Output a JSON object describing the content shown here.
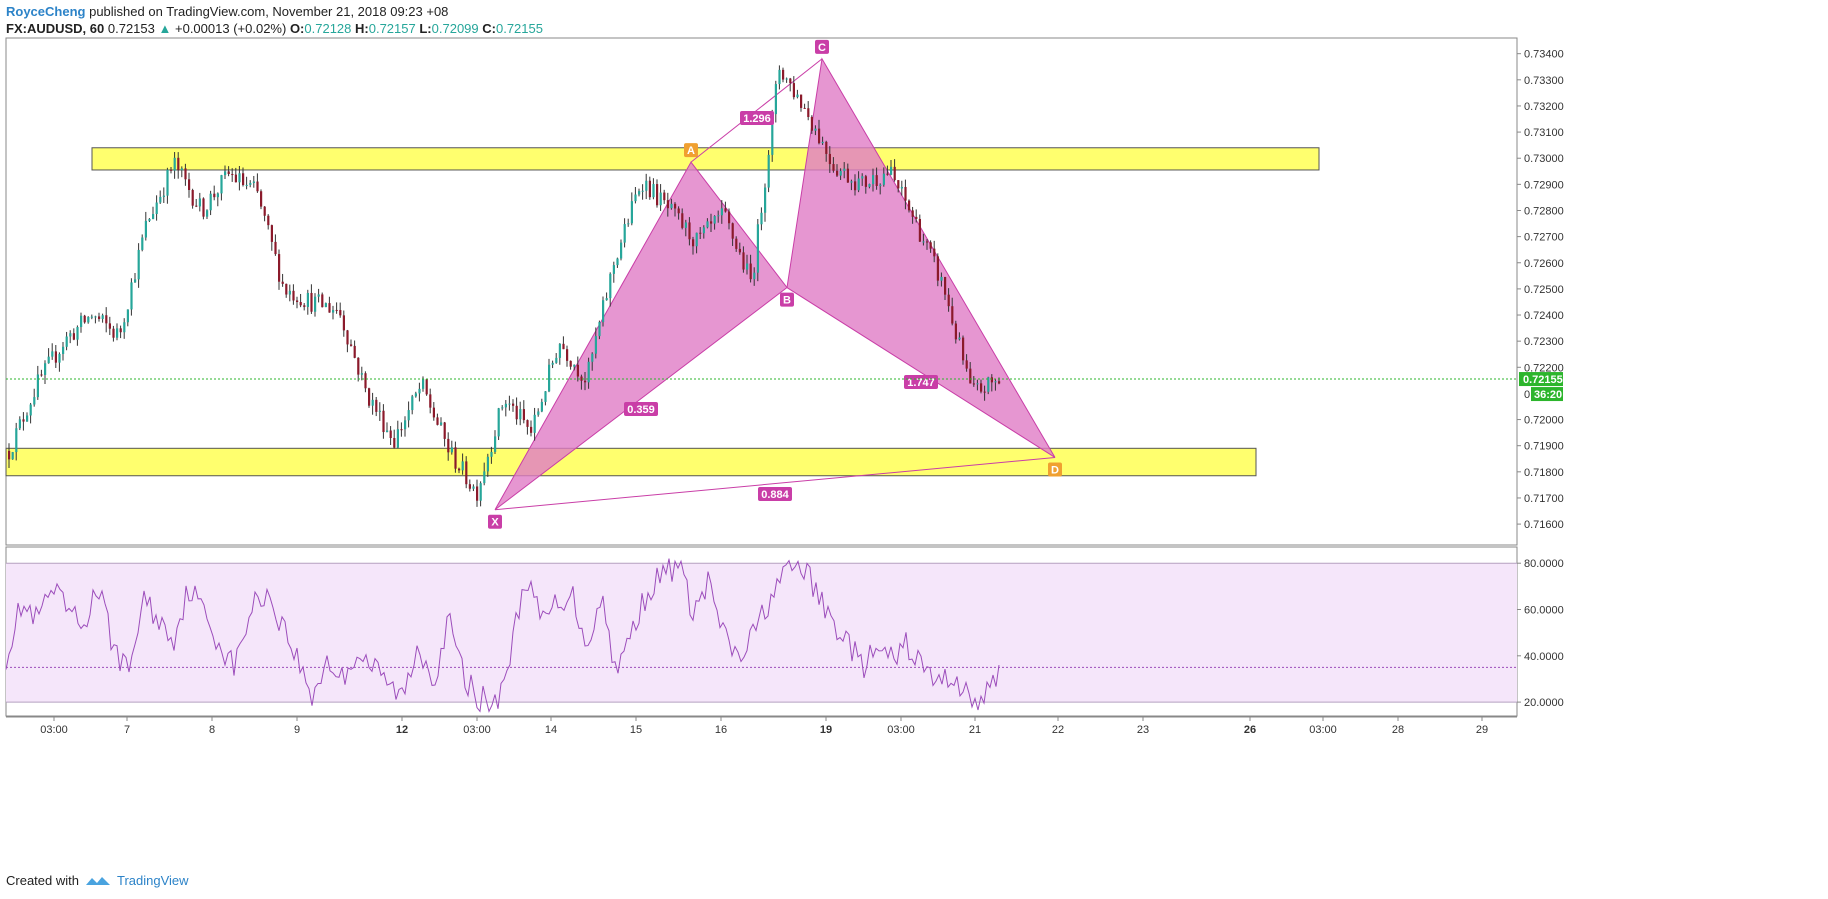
{
  "header": {
    "user": "RoyceCheng",
    "published": "published on TradingView.com, November 21, 2018 09:23 +08",
    "symbol": "FX:AUDUSD, 60",
    "last": "0.72153",
    "change": "+0.00013 (+0.02%)",
    "open_label": "O:",
    "open": "0.72128",
    "high_label": "H:",
    "high": "0.72157",
    "low_label": "L:",
    "low": "0.72099",
    "close_label": "C:",
    "close": "0.72155"
  },
  "footer": {
    "created_with": "Created with",
    "brand": "TradingView"
  },
  "colors": {
    "up_candle": "#26a69a",
    "down_candle": "#8b1a2b",
    "zone": "#ffff55",
    "pattern": "#e07cc5",
    "rsi_line": "#9c4dbb",
    "price_tag": "#2cb52c"
  },
  "chart_data": [
    {
      "type": "candlestick",
      "title": "",
      "y_ticks": [
        "0.73400",
        "0.73300",
        "0.73200",
        "0.73100",
        "0.73000",
        "0.72900",
        "0.72800",
        "0.72700",
        "0.72600",
        "0.72500",
        "0.72400",
        "0.72300",
        "0.72200",
        "0.72000",
        "0.71900",
        "0.71800",
        "0.71700",
        "0.71600"
      ],
      "ylim": [
        0.7152,
        0.7346
      ],
      "last_price_label": "0.72155",
      "countdown_label": "36:20",
      "countdown_prefix": "0",
      "x_ticks": [
        {
          "label": "03:00",
          "bold": false
        },
        {
          "label": "7",
          "bold": false
        },
        {
          "label": "8",
          "bold": false
        },
        {
          "label": "9",
          "bold": false
        },
        {
          "label": "12",
          "bold": true
        },
        {
          "label": "03:00",
          "bold": false
        },
        {
          "label": "14",
          "bold": false
        },
        {
          "label": "15",
          "bold": false
        },
        {
          "label": "16",
          "bold": false
        },
        {
          "label": "19",
          "bold": true
        },
        {
          "label": "03:00",
          "bold": false
        },
        {
          "label": "21",
          "bold": false
        },
        {
          "label": "22",
          "bold": false
        },
        {
          "label": "23",
          "bold": false
        },
        {
          "label": "26",
          "bold": true
        },
        {
          "label": "03:00",
          "bold": false
        },
        {
          "label": "28",
          "bold": false
        },
        {
          "label": "29",
          "bold": false
        }
      ],
      "path_anchors": [
        0.7188,
        0.7213,
        0.723,
        0.724,
        0.7232,
        0.7275,
        0.7298,
        0.728,
        0.7294,
        0.7287,
        0.725,
        0.7245,
        0.7242,
        0.721,
        0.7192,
        0.7213,
        0.7188,
        0.7172,
        0.7208,
        0.7195,
        0.723,
        0.7215,
        0.726,
        0.7292,
        0.728,
        0.7268,
        0.7278,
        0.7252,
        0.7335,
        0.7318,
        0.7297,
        0.729,
        0.7295,
        0.7275,
        0.725,
        0.721,
        0.7215
      ],
      "zones": [
        {
          "top": 0.7304,
          "bottom": 0.72955
        },
        {
          "top": 0.7189,
          "bottom": 0.71785
        }
      ],
      "harmonic_pattern": {
        "points": [
          {
            "label": "X",
            "price": 0.71655
          },
          {
            "label": "A",
            "price": 0.72985
          },
          {
            "label": "B",
            "price": 0.72505
          },
          {
            "label": "C",
            "price": 0.7338
          },
          {
            "label": "D",
            "price": 0.71855
          }
        ],
        "ratios": [
          "0.359",
          "1.296",
          "1.747",
          "0.884"
        ]
      }
    },
    {
      "type": "line",
      "title": "",
      "y_ticks": [
        "80.0000",
        "60.0000",
        "40.0000",
        "20.0000"
      ],
      "ylim": [
        14,
        87
      ],
      "band": [
        20,
        80
      ],
      "midline": 35,
      "path_anchors": [
        40,
        62,
        55,
        68,
        60,
        52,
        70,
        45,
        32,
        65,
        55,
        48,
        70,
        58,
        45,
        35,
        60,
        68,
        55,
        40,
        22,
        38,
        30,
        42,
        35,
        28,
        22,
        45,
        30,
        55,
        30,
        22,
        18,
        40,
        75,
        55,
        62,
        68,
        45,
        65,
        32,
        52,
        68,
        75,
        80,
        58,
        72,
        48,
        38,
        50,
        65,
        75,
        80,
        68,
        55,
        48,
        35,
        42,
        38,
        45,
        35,
        28,
        32,
        22,
        20,
        34
      ]
    }
  ]
}
